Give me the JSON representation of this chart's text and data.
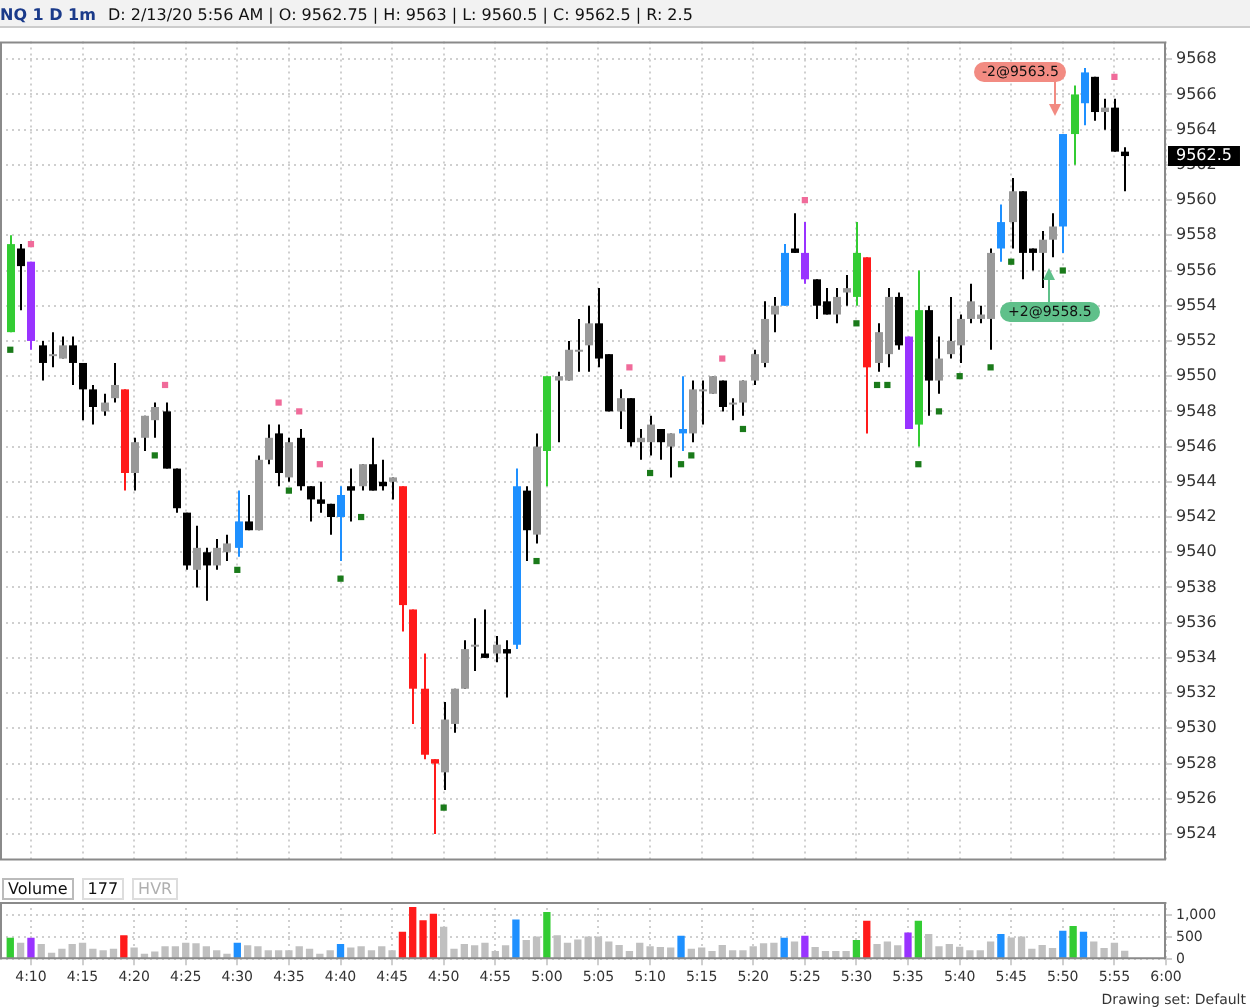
{
  "chart_data": [
    {
      "type": "candlestick",
      "title": "NQ 1 D 1m",
      "subtitle": "D: 2/13/20 5:56 AM | O: 9562.75 | H: 9563 | L: 9560.5 | C: 9562.5 | R: 2.5",
      "x": [
        4.1333,
        4.15,
        4.1667,
        4.1833,
        4.2,
        4.2167,
        4.2333,
        4.25,
        4.2667,
        4.2833,
        4.3,
        4.3167,
        4.3333,
        4.35,
        4.3667,
        4.3833,
        4.4,
        4.4167,
        4.4333,
        4.45,
        4.4667,
        4.4833,
        4.5,
        4.5167,
        4.5333,
        4.55,
        4.5667,
        4.5833,
        4.6,
        4.6167,
        4.6333,
        4.65,
        4.6667,
        4.6833,
        4.7,
        4.7167,
        4.7333,
        4.75,
        4.7667,
        4.7833,
        4.8,
        4.8167,
        4.8333,
        4.85,
        4.8667,
        4.8833,
        4.9,
        4.9167,
        4.9333,
        4.95,
        4.9667,
        4.9833,
        5,
        5.0167,
        5.0333,
        5.05,
        5.0667,
        5.0833,
        5.1,
        5.1167,
        5.1333,
        5.15,
        5.1667,
        5.1833,
        5.2,
        5.2167,
        5.2333,
        5.25,
        5.2667,
        5.2833,
        5.3,
        5.3167,
        5.3333,
        5.35,
        5.3667,
        5.3833,
        5.4,
        5.4167,
        5.4333,
        5.45,
        5.4667,
        5.4833,
        5.5,
        5.5167,
        5.5333,
        5.55,
        5.5667,
        5.5833,
        5.6,
        5.6167,
        5.6333,
        5.65,
        5.6667,
        5.6833,
        5.7,
        5.7167,
        5.7333,
        5.75,
        5.7667,
        5.7833,
        5.8,
        5.8167,
        5.8333,
        5.85,
        5.8667,
        5.8833,
        5.9,
        5.9167,
        5.9333
      ],
      "ohlc": [
        [
          9552.5,
          9558,
          9552.5,
          9557.5
        ],
        [
          9557.25,
          9557.5,
          9553.75,
          9556.25
        ],
        [
          9556.5,
          9556.5,
          9551.5,
          9552
        ],
        [
          9551.75,
          9552,
          9549.75,
          9550.75
        ],
        [
          9551.25,
          9552.5,
          9550.5,
          9551.25
        ],
        [
          9551,
          9552.25,
          9551,
          9551.75
        ],
        [
          9551.75,
          9552.25,
          9549.5,
          9550.75
        ],
        [
          9550.75,
          9550.75,
          9547.5,
          9549.25
        ],
        [
          9549.25,
          9549.5,
          9547.25,
          9548.25
        ],
        [
          9548,
          9549,
          9547.75,
          9548.5
        ],
        [
          9548.75,
          9550.75,
          9548.5,
          9549.5
        ],
        [
          9549.25,
          9549.25,
          9543.5,
          9544.5
        ],
        [
          9544.5,
          9546.5,
          9543.5,
          9546.25
        ],
        [
          9546.5,
          9547.75,
          9545.75,
          9547.75
        ],
        [
          9547.5,
          9548.5,
          9546.5,
          9548.25
        ],
        [
          9548,
          9548.5,
          9544.75,
          9544.75
        ],
        [
          9544.75,
          9544.75,
          9542.25,
          9542.5
        ],
        [
          9542.25,
          9542.25,
          9539,
          9539.25
        ],
        [
          9539,
          9541.5,
          9538,
          9540.25
        ],
        [
          9540,
          9540.25,
          9537.25,
          9539.25
        ],
        [
          9539.25,
          9540.75,
          9539,
          9540.25
        ],
        [
          9540,
          9541,
          9539.5,
          9540.5
        ],
        [
          9540.25,
          9543.5,
          9539.75,
          9541.75
        ],
        [
          9541.75,
          9543.25,
          9541.25,
          9541.25
        ],
        [
          9541.25,
          9545.5,
          9541.25,
          9545.25
        ],
        [
          9545.25,
          9547.25,
          9545,
          9546.5
        ],
        [
          9546.75,
          9547.25,
          9543.75,
          9544.5
        ],
        [
          9544.25,
          9546.5,
          9544,
          9546.25
        ],
        [
          9546.5,
          9547,
          9543.5,
          9543.75
        ],
        [
          9543.75,
          9543.75,
          9541.75,
          9543
        ],
        [
          9543,
          9544,
          9542.25,
          9542.75
        ],
        [
          9542.75,
          9542.75,
          9541,
          9542
        ],
        [
          9542,
          9543.75,
          9539.5,
          9543.25
        ],
        [
          9543.75,
          9544.75,
          9541.75,
          9543.5
        ],
        [
          9543.75,
          9545,
          9543.5,
          9545
        ],
        [
          9545,
          9546.5,
          9543.5,
          9543.5
        ],
        [
          9544,
          9545.25,
          9543.5,
          9543.75
        ],
        [
          9544,
          9544.25,
          9543,
          9544.25
        ],
        [
          9543.75,
          9543.75,
          9535.5,
          9537
        ],
        [
          9536.75,
          9536.75,
          9530.25,
          9532.25
        ],
        [
          9532.25,
          9534.25,
          9528.25,
          9528.5
        ],
        [
          9528.25,
          9528.25,
          9524,
          9528
        ],
        [
          9527.5,
          9531.5,
          9526.5,
          9530.5
        ],
        [
          9530.25,
          9532.25,
          9529.75,
          9532.25
        ],
        [
          9532.25,
          9535,
          9532.25,
          9534.5
        ],
        [
          9534.75,
          9536.25,
          9533.25,
          9534.75
        ],
        [
          9534.25,
          9536.75,
          9534,
          9534
        ],
        [
          9534.25,
          9535.25,
          9533.75,
          9534.75
        ],
        [
          9534.5,
          9535,
          9531.75,
          9534.25
        ],
        [
          9534.75,
          9544.75,
          9534.5,
          9543.75
        ],
        [
          9543.5,
          9543.75,
          9539.5,
          9541.25
        ],
        [
          9541,
          9546.75,
          9540.5,
          9546
        ],
        [
          9545.75,
          9550,
          9543.75,
          9550
        ],
        [
          9549.75,
          9550.25,
          9546.25,
          9550
        ],
        [
          9549.75,
          9552,
          9549.75,
          9551.5
        ],
        [
          9551.5,
          9553.25,
          9550.25,
          9551.5
        ],
        [
          9551.75,
          9554,
          9550.25,
          9553
        ],
        [
          9553,
          9555,
          9550.5,
          9551
        ],
        [
          9551.25,
          9551.25,
          9548,
          9548
        ],
        [
          9548,
          9549.25,
          9547,
          9548.75
        ],
        [
          9548.75,
          9548.75,
          9546,
          9546.25
        ],
        [
          9546.25,
          9547,
          9545.25,
          9546.5
        ],
        [
          9546.25,
          9547.75,
          9545.5,
          9547.25
        ],
        [
          9547,
          9547,
          9545.25,
          9546.25
        ],
        [
          9546,
          9546.75,
          9544.25,
          9546.75
        ],
        [
          9546.75,
          9550,
          9545.75,
          9547
        ],
        [
          9546.75,
          9549.75,
          9546.25,
          9549.25
        ],
        [
          9549.25,
          9549.75,
          9547.25,
          9549.25
        ],
        [
          9549,
          9550,
          9549,
          9550
        ],
        [
          9549.75,
          9549.75,
          9548,
          9548.25
        ],
        [
          9548.5,
          9548.75,
          9547.5,
          9548.5
        ],
        [
          9548.5,
          9549.75,
          9547.75,
          9549.75
        ],
        [
          9549.75,
          9551.5,
          9549.5,
          9551.25
        ],
        [
          9550.75,
          9554.25,
          9550.5,
          9553.25
        ],
        [
          9553.5,
          9554.5,
          9552.5,
          9554
        ],
        [
          9554,
          9557.5,
          9554,
          9557
        ],
        [
          9557.25,
          9559.25,
          9557,
          9557
        ],
        [
          9557,
          9558.75,
          9555.25,
          9555.5
        ],
        [
          9555.5,
          9555.5,
          9553.25,
          9554
        ],
        [
          9554.25,
          9555,
          9553.5,
          9553.5
        ],
        [
          9553.5,
          9555,
          9553,
          9554.5
        ],
        [
          9554.75,
          9555.75,
          9554,
          9555
        ],
        [
          9554.5,
          9558.75,
          9554,
          9557
        ],
        [
          9556.75,
          9556.75,
          9546.75,
          9550.5
        ],
        [
          9550.75,
          9553,
          9550.25,
          9552.5
        ],
        [
          9551.25,
          9555,
          9550.5,
          9554.5
        ],
        [
          9554.5,
          9554.75,
          9551.5,
          9551.75
        ],
        [
          9552.25,
          9552.25,
          9547,
          9547
        ],
        [
          9547.25,
          9556,
          9546,
          9553.75
        ],
        [
          9553.75,
          9554,
          9547.75,
          9549.75
        ],
        [
          9549.75,
          9552.25,
          9549,
          9551
        ],
        [
          9551.25,
          9554.5,
          9551,
          9552
        ],
        [
          9551.75,
          9553.5,
          9550.75,
          9553.25
        ],
        [
          9553.25,
          9555.25,
          9553,
          9554.25
        ],
        [
          9553.25,
          9554,
          9553,
          9553.5
        ],
        [
          9553.25,
          9557.25,
          9551.5,
          9557
        ],
        [
          9557.25,
          9559.75,
          9556.5,
          9558.75
        ],
        [
          9558.75,
          9561.25,
          9557.25,
          9560.5
        ],
        [
          9560.5,
          9560.5,
          9555.5,
          9557
        ],
        [
          9557.25,
          9557.25,
          9556,
          9557
        ],
        [
          9557,
          9558.25,
          9555,
          9557.75
        ],
        [
          9557.75,
          9559.25,
          9556.75,
          9558.5
        ],
        [
          9558.5,
          9563.75,
          9557,
          9563.75
        ],
        [
          9563.75,
          9566.5,
          9562,
          9566
        ],
        [
          9565.5,
          9567.5,
          9564.25,
          9567.25
        ],
        [
          9567,
          9567,
          9564.5,
          9565
        ],
        [
          9565,
          9565.75,
          9564,
          9565.25
        ],
        [
          9565.25,
          9565.75,
          9562.75,
          9562.75
        ],
        [
          9562.75,
          9563,
          9560.5,
          9562.5
        ]
      ],
      "colors": [
        "#33cc33",
        "#000000",
        "#9933ff",
        "#000000",
        "#999999",
        "#999999",
        "#000000",
        "#000000",
        "#000000",
        "#999999",
        "#999999",
        "#ff1a1a",
        "#999999",
        "#999999",
        "#999999",
        "#000000",
        "#000000",
        "#000000",
        "#999999",
        "#000000",
        "#999999",
        "#999999",
        "#1e90ff",
        "#000000",
        "#999999",
        "#999999",
        "#000000",
        "#999999",
        "#000000",
        "#000000",
        "#000000",
        "#000000",
        "#1e90ff",
        "#000000",
        "#999999",
        "#000000",
        "#000000",
        "#999999",
        "#ff1a1a",
        "#ff1a1a",
        "#ff1a1a",
        "#ff1a1a",
        "#999999",
        "#999999",
        "#999999",
        "#999999",
        "#000000",
        "#999999",
        "#000000",
        "#1e90ff",
        "#000000",
        "#999999",
        "#33cc33",
        "#999999",
        "#999999",
        "#999999",
        "#999999",
        "#000000",
        "#000000",
        "#999999",
        "#000000",
        "#999999",
        "#999999",
        "#000000",
        "#999999",
        "#1e90ff",
        "#999999",
        "#999999",
        "#999999",
        "#000000",
        "#999999",
        "#999999",
        "#999999",
        "#999999",
        "#999999",
        "#1e90ff",
        "#000000",
        "#9933ff",
        "#000000",
        "#000000",
        "#999999",
        "#999999",
        "#33cc33",
        "#ff1a1a",
        "#999999",
        "#999999",
        "#000000",
        "#9933ff",
        "#33cc33",
        "#000000",
        "#999999",
        "#999999",
        "#999999",
        "#999999",
        "#999999",
        "#999999",
        "#1e90ff",
        "#999999",
        "#000000",
        "#000000",
        "#999999",
        "#999999",
        "#1e90ff",
        "#33cc33",
        "#1e90ff",
        "#000000",
        "#999999",
        "#000000",
        "#000000"
      ],
      "series": [
        {
          "type": "scatter",
          "color": "#f06b9a",
          "x": [
            4.1667,
            4.3833,
            4.5667,
            4.6,
            4.6333,
            5.1333,
            5.2833,
            5.4167,
            5.9167
          ],
          "values": [
            9557.5,
            9549.5,
            9548.5,
            9548,
            9545,
            9550.5,
            9551,
            9560,
            9567
          ]
        },
        {
          "type": "scatter",
          "color": "#1a7a1a",
          "x": [
            4.1333,
            4.3667,
            4.5,
            4.5833,
            4.6667,
            4.7,
            4.8333,
            4.9833,
            5.1667,
            5.2167,
            5.2333,
            5.3167,
            5.5,
            5.5333,
            5.55,
            5.6,
            5.6333,
            5.6667,
            5.7167,
            5.75,
            5.8333
          ],
          "values": [
            9551.5,
            9545.5,
            9539,
            9543.5,
            9538.5,
            9542,
            9525.5,
            9539.5,
            9544.5,
            9545,
            9545.5,
            9547,
            9553,
            9549.5,
            9549.5,
            9545,
            9548,
            9550,
            9550.5,
            9556.5,
            9556
          ]
        }
      ],
      "marker": "square",
      "xlim": [
        4.1167,
        6
      ],
      "xticks": [
        {
          "value": 4.1667,
          "label": null
        },
        {
          "value": 4.25,
          "label": null
        },
        {
          "value": 4.3333,
          "label": null
        },
        {
          "value": 4.4167,
          "label": null
        },
        {
          "value": 4.5,
          "label": null
        },
        {
          "value": 4.5833,
          "label": null
        },
        {
          "value": 4.6667,
          "label": null
        },
        {
          "value": 4.75,
          "label": null
        },
        {
          "value": 4.8333,
          "label": null
        },
        {
          "value": 4.9167,
          "label": null
        },
        {
          "value": 5,
          "label": null
        },
        {
          "value": 5.0833,
          "label": null
        },
        {
          "value": 5.1667,
          "label": null
        },
        {
          "value": 5.25,
          "label": null
        },
        {
          "value": 5.3333,
          "label": null
        },
        {
          "value": 5.4167,
          "label": null
        },
        {
          "value": 5.5,
          "label": null
        },
        {
          "value": 5.5833,
          "label": null
        },
        {
          "value": 5.6667,
          "label": null
        },
        {
          "value": 5.75,
          "label": null
        },
        {
          "value": 5.8333,
          "label": null
        },
        {
          "value": 5.9167,
          "label": null
        },
        {
          "value": 6,
          "label": null
        }
      ],
      "ylim": [
        9522.5,
        9569
      ],
      "yticks": [
        9524,
        9526,
        9528,
        9530,
        9532,
        9534,
        9536,
        9538,
        9540,
        9542,
        9544,
        9546,
        9548,
        9550,
        9552,
        9554,
        9556,
        9558,
        9560,
        9562,
        9564,
        9566,
        9568
      ],
      "grid": true,
      "tick_labels": "y",
      "annotations": [
        "-2@9563.5",
        "+2@9558.5",
        "9562.5",
        "Drawing set: Default"
      ]
    },
    {
      "type": "bar",
      "title": "Volume",
      "x": [
        4.1333,
        4.15,
        4.1667,
        4.1833,
        4.2,
        4.2167,
        4.2333,
        4.25,
        4.2667,
        4.2833,
        4.3,
        4.3167,
        4.3333,
        4.35,
        4.3667,
        4.3833,
        4.4,
        4.4167,
        4.4333,
        4.45,
        4.4667,
        4.4833,
        4.5,
        4.5167,
        4.5333,
        4.55,
        4.5667,
        4.5833,
        4.6,
        4.6167,
        4.6333,
        4.65,
        4.6667,
        4.6833,
        4.7,
        4.7167,
        4.7333,
        4.75,
        4.7667,
        4.7833,
        4.8,
        4.8167,
        4.8333,
        4.85,
        4.8667,
        4.8833,
        4.9,
        4.9167,
        4.9333,
        4.95,
        4.9667,
        4.9833,
        5,
        5.0167,
        5.0333,
        5.05,
        5.0667,
        5.0833,
        5.1,
        5.1167,
        5.1333,
        5.15,
        5.1667,
        5.1833,
        5.2,
        5.2167,
        5.2333,
        5.25,
        5.2667,
        5.2833,
        5.3,
        5.3167,
        5.3333,
        5.35,
        5.3667,
        5.3833,
        5.4,
        5.4167,
        5.4333,
        5.45,
        5.4667,
        5.4833,
        5.5,
        5.5167,
        5.5333,
        5.55,
        5.5667,
        5.5833,
        5.6,
        5.6167,
        5.6333,
        5.65,
        5.6667,
        5.6833,
        5.7,
        5.7167,
        5.7333,
        5.75,
        5.7667,
        5.7833,
        5.8,
        5.8167,
        5.8333,
        5.85,
        5.8667,
        5.8833,
        5.9,
        5.9167,
        5.9333
      ],
      "values": [
        470,
        360,
        470,
        330,
        130,
        220,
        330,
        360,
        220,
        190,
        220,
        530,
        250,
        110,
        160,
        280,
        280,
        360,
        350,
        280,
        190,
        110,
        360,
        300,
        280,
        190,
        190,
        190,
        280,
        220,
        110,
        190,
        330,
        250,
        280,
        190,
        280,
        190,
        610,
        1170,
        870,
        1020,
        720,
        220,
        330,
        300,
        360,
        170,
        300,
        890,
        420,
        500,
        1060,
        530,
        360,
        430,
        500,
        500,
        390,
        310,
        170,
        360,
        280,
        260,
        250,
        520,
        220,
        250,
        170,
        310,
        190,
        190,
        280,
        350,
        360,
        470,
        390,
        520,
        260,
        170,
        170,
        170,
        420,
        860,
        330,
        390,
        300,
        590,
        860,
        560,
        280,
        330,
        270,
        190,
        190,
        390,
        560,
        480,
        500,
        220,
        310,
        240,
        630,
        740,
        610,
        390,
        240,
        360,
        177
      ],
      "colors": [
        "#33cc33",
        "#c0c0c0",
        "#9933ff",
        "#c0c0c0",
        "#c0c0c0",
        "#c0c0c0",
        "#c0c0c0",
        "#c0c0c0",
        "#c0c0c0",
        "#c0c0c0",
        "#c0c0c0",
        "#ff1a1a",
        "#c0c0c0",
        "#c0c0c0",
        "#c0c0c0",
        "#c0c0c0",
        "#c0c0c0",
        "#c0c0c0",
        "#c0c0c0",
        "#c0c0c0",
        "#c0c0c0",
        "#c0c0c0",
        "#1e90ff",
        "#c0c0c0",
        "#c0c0c0",
        "#c0c0c0",
        "#c0c0c0",
        "#c0c0c0",
        "#c0c0c0",
        "#c0c0c0",
        "#c0c0c0",
        "#c0c0c0",
        "#1e90ff",
        "#c0c0c0",
        "#c0c0c0",
        "#c0c0c0",
        "#c0c0c0",
        "#c0c0c0",
        "#ff1a1a",
        "#ff1a1a",
        "#ff1a1a",
        "#ff1a1a",
        "#c0c0c0",
        "#c0c0c0",
        "#c0c0c0",
        "#c0c0c0",
        "#c0c0c0",
        "#c0c0c0",
        "#c0c0c0",
        "#1e90ff",
        "#c0c0c0",
        "#c0c0c0",
        "#33cc33",
        "#c0c0c0",
        "#c0c0c0",
        "#c0c0c0",
        "#c0c0c0",
        "#c0c0c0",
        "#c0c0c0",
        "#c0c0c0",
        "#c0c0c0",
        "#c0c0c0",
        "#c0c0c0",
        "#c0c0c0",
        "#c0c0c0",
        "#1e90ff",
        "#c0c0c0",
        "#c0c0c0",
        "#c0c0c0",
        "#c0c0c0",
        "#c0c0c0",
        "#c0c0c0",
        "#c0c0c0",
        "#c0c0c0",
        "#c0c0c0",
        "#1e90ff",
        "#c0c0c0",
        "#9933ff",
        "#c0c0c0",
        "#c0c0c0",
        "#c0c0c0",
        "#c0c0c0",
        "#33cc33",
        "#ff1a1a",
        "#c0c0c0",
        "#c0c0c0",
        "#c0c0c0",
        "#9933ff",
        "#33cc33",
        "#c0c0c0",
        "#c0c0c0",
        "#c0c0c0",
        "#c0c0c0",
        "#c0c0c0",
        "#c0c0c0",
        "#c0c0c0",
        "#1e90ff",
        "#c0c0c0",
        "#c0c0c0",
        "#c0c0c0",
        "#c0c0c0",
        "#c0c0c0",
        "#1e90ff",
        "#33cc33",
        "#1e90ff",
        "#c0c0c0",
        "#c0c0c0",
        "#c0c0c0",
        "#c0c0c0"
      ],
      "xlim": [
        4.1167,
        6
      ],
      "xticks": [
        {
          "value": 4.1667,
          "label": "4:10"
        },
        {
          "value": 4.25,
          "label": "4:15"
        },
        {
          "value": 4.3333,
          "label": "4:20"
        },
        {
          "value": 4.4167,
          "label": "4:25"
        },
        {
          "value": 4.5,
          "label": "4:30"
        },
        {
          "value": 4.5833,
          "label": "4:35"
        },
        {
          "value": 4.6667,
          "label": "4:40"
        },
        {
          "value": 4.75,
          "label": "4:45"
        },
        {
          "value": 4.8333,
          "label": "4:50"
        },
        {
          "value": 4.9167,
          "label": "4:55"
        },
        {
          "value": 5,
          "label": "5:00"
        },
        {
          "value": 5.0833,
          "label": "5:05"
        },
        {
          "value": 5.1667,
          "label": "5:10"
        },
        {
          "value": 5.25,
          "label": "5:15"
        },
        {
          "value": 5.3333,
          "label": "5:20"
        },
        {
          "value": 5.4167,
          "label": "5:25"
        },
        {
          "value": 5.5,
          "label": "5:30"
        },
        {
          "value": 5.5833,
          "label": "5:35"
        },
        {
          "value": 5.6667,
          "label": "5:40"
        },
        {
          "value": 5.75,
          "label": "5:45"
        },
        {
          "value": 5.8333,
          "label": "5:50"
        },
        {
          "value": 5.9167,
          "label": "5:55"
        },
        {
          "value": 6,
          "label": "6:00"
        }
      ],
      "ylim": [
        0,
        1300
      ],
      "yticks": [
        0,
        500,
        {
          "value": 1000,
          "label": "1,000"
        }
      ],
      "grid": true,
      "annotations": [
        "177",
        "HVR"
      ]
    }
  ]
}
